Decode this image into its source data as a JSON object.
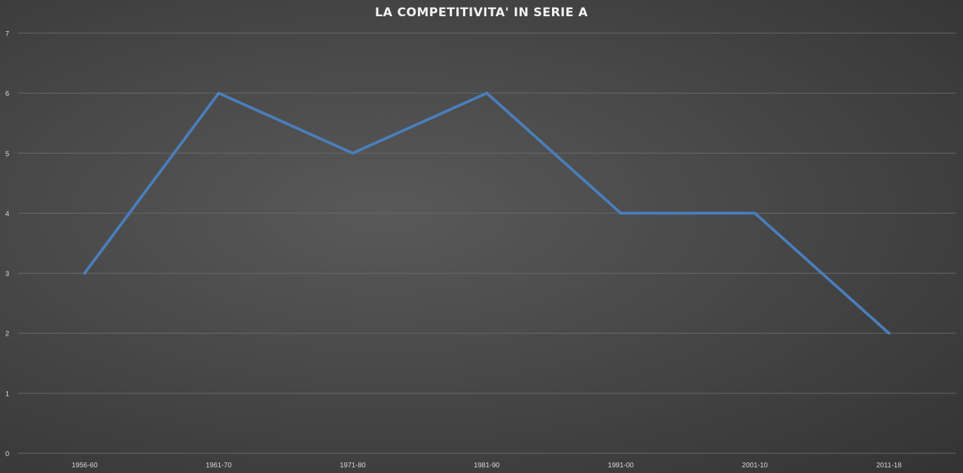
{
  "chart_data": {
    "type": "line",
    "title": "LA COMPETITIVITA' IN SERIE A",
    "xlabel": "",
    "ylabel": "",
    "categories": [
      "1956-60",
      "1961-70",
      "1971-80",
      "1981-90",
      "1991-00",
      "2001-10",
      "2011-18"
    ],
    "series": [
      {
        "values": [
          3,
          6,
          5,
          6,
          4,
          4,
          2
        ]
      }
    ],
    "ylim": [
      0,
      7
    ],
    "yticks": [
      0,
      1,
      2,
      3,
      4,
      5,
      6,
      7
    ],
    "grid": true,
    "legend": "none",
    "colors": {
      "line": "#4a7ebb",
      "grid": "#6a6a6a",
      "text": "#d9d9d9",
      "title": "#f2f2f2"
    }
  }
}
